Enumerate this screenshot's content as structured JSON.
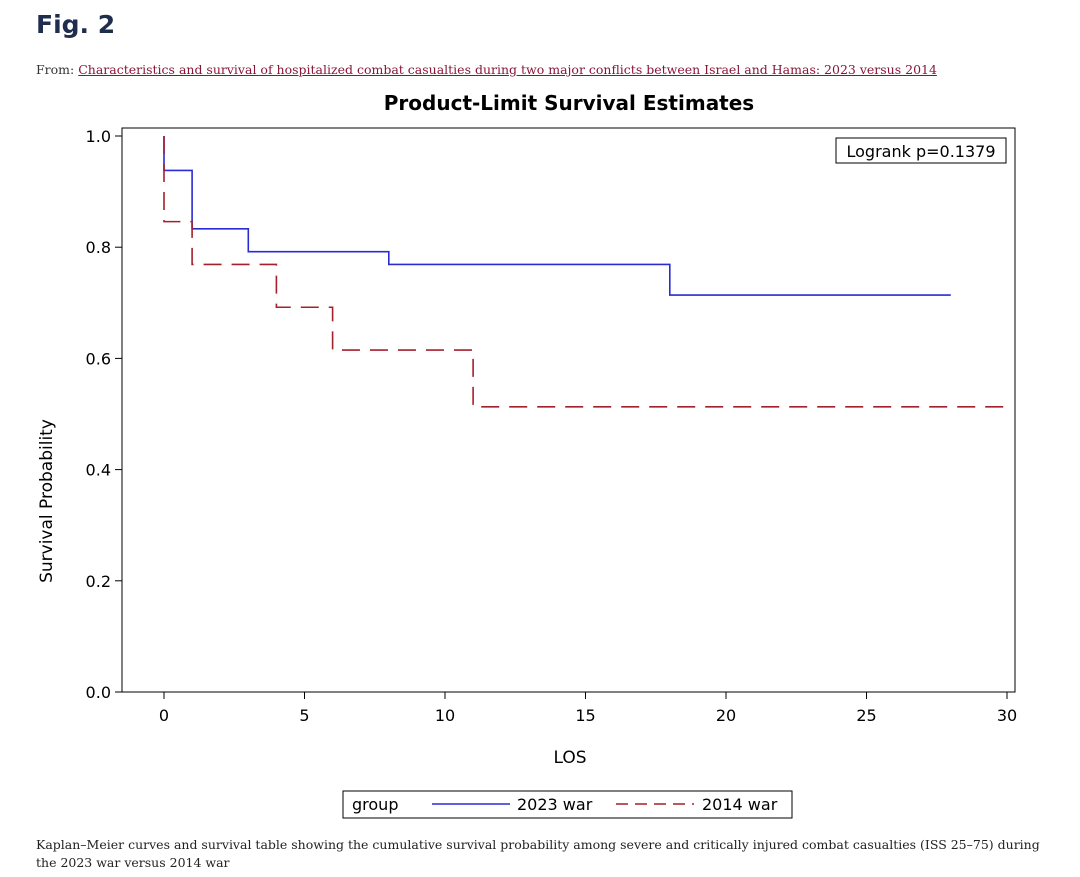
{
  "figure": {
    "heading": "Fig. 2",
    "from_label": "From:",
    "article_link": "Characteristics and survival of hospitalized combat casualties during two major conflicts between Israel and Hamas: 2023 versus 2014",
    "caption": "Kaplan–Meier curves and survival table showing the cumulative survival probability among severe and critically injured combat casualties (ISS 25–75) during the 2023 war versus 2014 war"
  },
  "chart_data": {
    "type": "line",
    "title": "Product-Limit Survival Estimates",
    "xlabel": "LOS",
    "ylabel": "Survival Probability",
    "xlim": [
      0,
      30
    ],
    "ylim": [
      0,
      1.0
    ],
    "x_ticks": [
      0,
      5,
      10,
      15,
      20,
      25,
      30
    ],
    "y_ticks": [
      0.0,
      0.2,
      0.4,
      0.6,
      0.8,
      1.0
    ],
    "y_tick_labels": [
      "0.0",
      "0.2",
      "0.4",
      "0.6",
      "0.8",
      "1.0"
    ],
    "step": true,
    "grid": false,
    "annotation": "Logrank p=0.1379",
    "annotation_position": "top-right",
    "legend_title": "group",
    "legend_position": "bottom",
    "series": [
      {
        "name": "2023 war",
        "color": "#2b2bd4",
        "style": "solid",
        "points": [
          [
            0,
            1.0
          ],
          [
            0,
            0.938
          ],
          [
            1,
            0.833
          ],
          [
            3,
            0.792
          ],
          [
            8,
            0.769
          ],
          [
            18,
            0.714
          ],
          [
            28,
            0.714
          ]
        ]
      },
      {
        "name": "2014 war",
        "color": "#a4202c",
        "style": "dashed",
        "points": [
          [
            0,
            1.0
          ],
          [
            0,
            0.846
          ],
          [
            1,
            0.769
          ],
          [
            4,
            0.692
          ],
          [
            6,
            0.615
          ],
          [
            11,
            0.513
          ],
          [
            30,
            0.513
          ]
        ]
      }
    ]
  }
}
